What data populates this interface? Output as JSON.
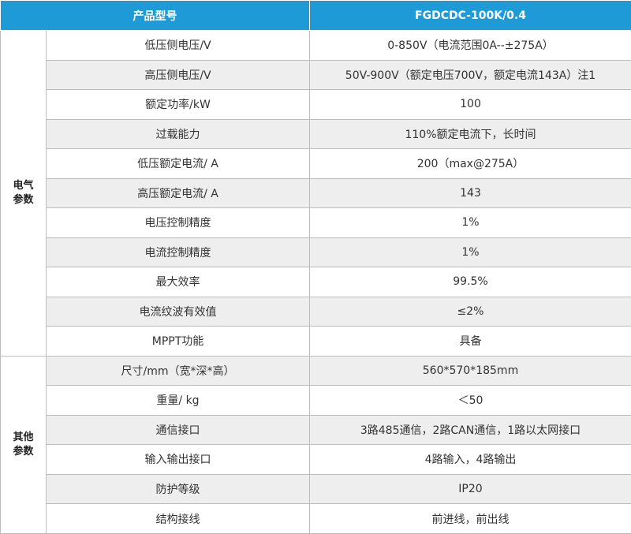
{
  "table": {
    "header": {
      "name_label": "产品型号",
      "value_label": "FGDCDC-100K/0.4"
    },
    "groups": [
      {
        "label_line1": "电气",
        "label_line2": "参数",
        "rows": [
          {
            "name": "低压侧电压/V",
            "value": "0-850V（电流范围0A--±275A）"
          },
          {
            "name": "高压侧电压/V",
            "value": "50V-900V（额定电压700V，额定电流143A）注1"
          },
          {
            "name": "额定功率/kW",
            "value": "100"
          },
          {
            "name": "过载能力",
            "value": "110%额定电流下，长时间"
          },
          {
            "name": "低压额定电流/ A",
            "value": "200（max@275A）"
          },
          {
            "name": "高压额定电流/ A",
            "value": "143"
          },
          {
            "name": "电压控制精度",
            "value": "1%"
          },
          {
            "name": "电流控制精度",
            "value": "1%"
          },
          {
            "name": "最大效率",
            "value": "99.5%"
          },
          {
            "name": "电流纹波有效值",
            "value": "≤2%"
          },
          {
            "name": "MPPT功能",
            "value": "具备"
          }
        ]
      },
      {
        "label_line1": "其他",
        "label_line2": "参数",
        "rows": [
          {
            "name": "尺寸/mm（宽*深*高）",
            "value": "560*570*185mm"
          },
          {
            "name": "重量/ kg",
            "value": "＜50"
          },
          {
            "name": "通信接口",
            "value": "3路485通信，2路CAN通信，1路以太网接口"
          },
          {
            "name": "输入输出接口",
            "value": "4路输入，4路输出"
          },
          {
            "name": "防护等级",
            "value": "IP20"
          },
          {
            "name": "结构接线",
            "value": "前进线，前出线"
          }
        ]
      }
    ]
  },
  "colors": {
    "header_bg": "#1e9ad6",
    "header_text": "#ffffff",
    "alt_row_bg": "#eeeeee",
    "border": "#bdbdbd"
  }
}
